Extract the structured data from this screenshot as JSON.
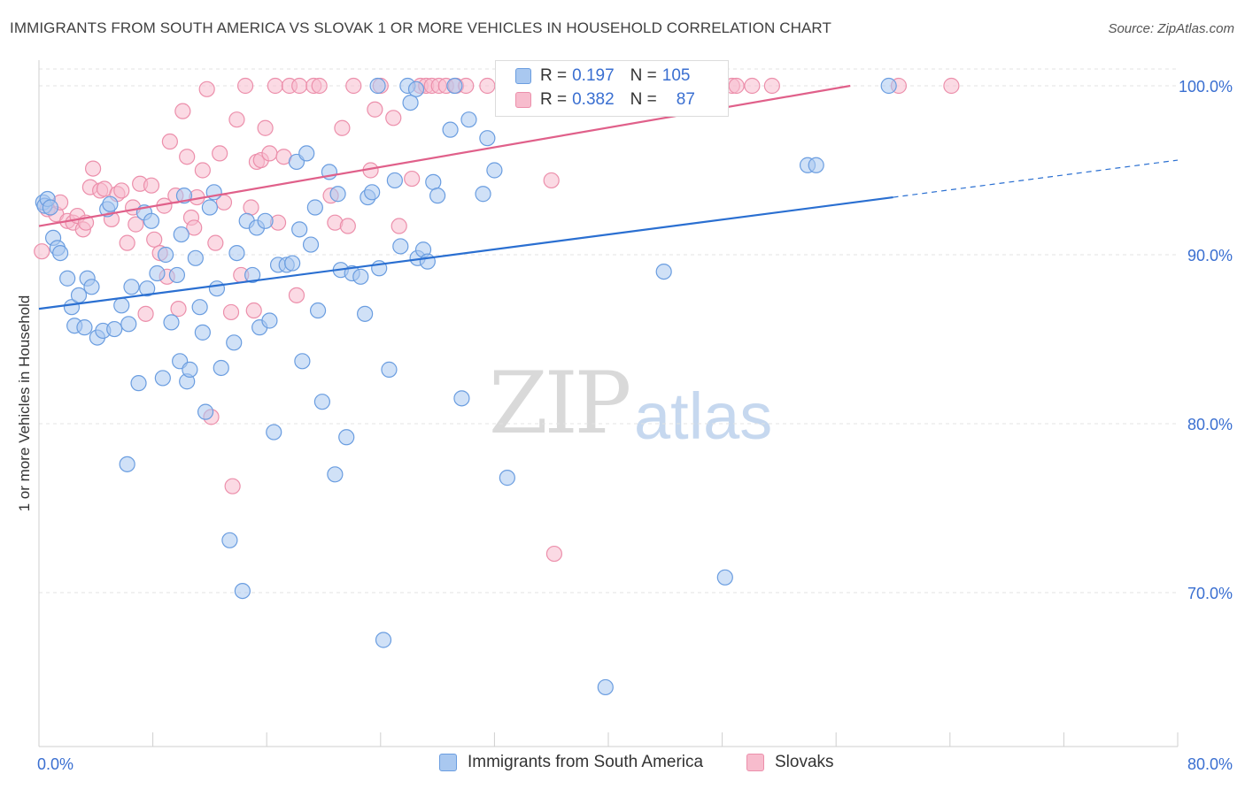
{
  "header": {
    "title": "IMMIGRANTS FROM SOUTH AMERICA VS SLOVAK 1 OR MORE VEHICLES IN HOUSEHOLD CORRELATION CHART",
    "source": "Source: ZipAtlas.com"
  },
  "watermark": {
    "zip": "ZIP",
    "atlas": "atlas"
  },
  "legend_top": {
    "rows": [
      {
        "r_label": "R =",
        "r_value": "0.197",
        "n_label": "N =",
        "n_value": "105"
      },
      {
        "r_label": "R =",
        "r_value": "0.382",
        "n_label": "N =",
        "n_value": "87"
      }
    ]
  },
  "legend_bottom": {
    "items": [
      "Immigrants from South America",
      "Slovaks"
    ]
  },
  "colors": {
    "blue_fill": "#a9c8f0",
    "blue_stroke": "#6a9de0",
    "blue_line": "#2a6fd1",
    "pink_fill": "#f7bccd",
    "pink_stroke": "#ec8fab",
    "pink_line": "#e0608a",
    "tick_label": "#3a6fd1",
    "grid": "#e3e3e3"
  },
  "chart_data": {
    "type": "scatter",
    "title": "IMMIGRANTS FROM SOUTH AMERICA VS SLOVAK 1 OR MORE VEHICLES IN HOUSEHOLD CORRELATION CHART",
    "xlabel": "",
    "ylabel": "1 or more Vehicles in Household",
    "xlim": [
      0,
      80
    ],
    "ylim": [
      60.5,
      101.5
    ],
    "x_tick_labels": [
      "0.0%",
      "80.0%"
    ],
    "y_ticks": [
      70,
      80,
      90,
      100
    ],
    "y_tick_labels": [
      "70.0%",
      "80.0%",
      "90.0%",
      "100.0%"
    ],
    "grid": true,
    "legend_position": "top-center",
    "series": [
      {
        "name": "Immigrants from South America",
        "r": 0.197,
        "n": 105,
        "trend": {
          "x0": 0,
          "y0": 86.8,
          "x1": 60,
          "y1": 93.4,
          "dashed_to_x": 80,
          "dashed_to_y": 95.6
        },
        "points": [
          [
            0.3,
            93.1
          ],
          [
            0.4,
            92.9
          ],
          [
            0.6,
            93.3
          ],
          [
            0.8,
            92.8
          ],
          [
            1.0,
            91.0
          ],
          [
            1.3,
            90.4
          ],
          [
            1.5,
            90.1
          ],
          [
            2.0,
            88.6
          ],
          [
            2.3,
            86.9
          ],
          [
            2.5,
            85.8
          ],
          [
            2.8,
            87.6
          ],
          [
            3.2,
            85.7
          ],
          [
            3.4,
            88.6
          ],
          [
            3.7,
            88.1
          ],
          [
            4.1,
            85.1
          ],
          [
            4.5,
            85.5
          ],
          [
            4.8,
            92.7
          ],
          [
            5.3,
            85.6
          ],
          [
            5.8,
            87.0
          ],
          [
            6.3,
            85.9
          ],
          [
            6.5,
            88.1
          ],
          [
            7.0,
            82.4
          ],
          [
            7.4,
            92.5
          ],
          [
            7.6,
            88.0
          ],
          [
            7.9,
            92.0
          ],
          [
            8.3,
            88.9
          ],
          [
            8.7,
            82.7
          ],
          [
            8.9,
            90.0
          ],
          [
            9.3,
            86.0
          ],
          [
            9.7,
            88.8
          ],
          [
            9.9,
            83.7
          ],
          [
            10.2,
            93.5
          ],
          [
            10.4,
            82.5
          ],
          [
            10.6,
            83.2
          ],
          [
            11.0,
            89.8
          ],
          [
            11.5,
            85.4
          ],
          [
            11.7,
            80.7
          ],
          [
            12.0,
            92.8
          ],
          [
            12.3,
            93.7
          ],
          [
            12.5,
            88.0
          ],
          [
            12.8,
            83.3
          ],
          [
            13.4,
            73.1
          ],
          [
            13.7,
            84.8
          ],
          [
            13.9,
            90.1
          ],
          [
            14.3,
            70.1
          ],
          [
            14.6,
            92.0
          ],
          [
            15.0,
            88.8
          ],
          [
            15.3,
            91.6
          ],
          [
            15.5,
            85.7
          ],
          [
            15.9,
            92.0
          ],
          [
            16.2,
            86.1
          ],
          [
            16.5,
            79.5
          ],
          [
            16.8,
            89.4
          ],
          [
            17.4,
            89.4
          ],
          [
            17.8,
            89.5
          ],
          [
            18.1,
            95.5
          ],
          [
            18.5,
            83.7
          ],
          [
            18.8,
            96.0
          ],
          [
            19.1,
            90.6
          ],
          [
            19.4,
            92.8
          ],
          [
            19.6,
            86.7
          ],
          [
            19.9,
            81.3
          ],
          [
            20.4,
            94.9
          ],
          [
            20.8,
            77.0
          ],
          [
            21.0,
            93.6
          ],
          [
            21.2,
            89.1
          ],
          [
            21.6,
            79.2
          ],
          [
            22.0,
            88.9
          ],
          [
            22.6,
            88.7
          ],
          [
            22.9,
            86.5
          ],
          [
            23.1,
            93.4
          ],
          [
            23.4,
            93.7
          ],
          [
            23.9,
            89.2
          ],
          [
            24.2,
            67.2
          ],
          [
            24.6,
            83.2
          ],
          [
            25.0,
            94.4
          ],
          [
            25.4,
            90.5
          ],
          [
            25.9,
            100.0
          ],
          [
            26.1,
            99.0
          ],
          [
            26.6,
            89.8
          ],
          [
            27.0,
            90.3
          ],
          [
            27.3,
            89.6
          ],
          [
            27.7,
            94.3
          ],
          [
            28.0,
            93.5
          ],
          [
            28.9,
            97.4
          ],
          [
            29.2,
            100.0
          ],
          [
            29.7,
            81.5
          ],
          [
            30.2,
            98.0
          ],
          [
            31.2,
            93.6
          ],
          [
            31.5,
            96.9
          ],
          [
            32.0,
            95.0
          ],
          [
            32.9,
            76.8
          ],
          [
            39.8,
            64.4
          ],
          [
            43.9,
            89.0
          ],
          [
            48.2,
            70.9
          ],
          [
            54.0,
            95.3
          ],
          [
            54.6,
            95.3
          ],
          [
            59.7,
            100.0
          ],
          [
            11.3,
            86.9
          ],
          [
            6.2,
            77.6
          ],
          [
            5.0,
            93.0
          ],
          [
            10.0,
            91.2
          ],
          [
            23.8,
            100.0
          ],
          [
            26.5,
            99.8
          ],
          [
            18.3,
            91.5
          ]
        ]
      },
      {
        "name": "Slovaks",
        "r": 0.382,
        "n": 87,
        "trend": {
          "x0": 0,
          "y0": 91.7,
          "x1": 57,
          "y1": 100.0
        },
        "points": [
          [
            0.2,
            90.2
          ],
          [
            0.6,
            92.7
          ],
          [
            1.2,
            92.4
          ],
          [
            1.5,
            93.1
          ],
          [
            2.0,
            92.0
          ],
          [
            2.4,
            91.9
          ],
          [
            2.7,
            92.3
          ],
          [
            3.1,
            91.5
          ],
          [
            3.3,
            91.9
          ],
          [
            3.6,
            94.0
          ],
          [
            3.8,
            95.1
          ],
          [
            4.3,
            93.8
          ],
          [
            4.6,
            93.9
          ],
          [
            5.1,
            92.1
          ],
          [
            5.5,
            93.6
          ],
          [
            5.8,
            93.8
          ],
          [
            6.2,
            90.7
          ],
          [
            6.6,
            92.8
          ],
          [
            6.8,
            91.8
          ],
          [
            7.1,
            94.2
          ],
          [
            7.5,
            86.5
          ],
          [
            7.9,
            94.1
          ],
          [
            8.1,
            90.9
          ],
          [
            8.5,
            90.1
          ],
          [
            8.8,
            92.9
          ],
          [
            9.0,
            88.7
          ],
          [
            9.2,
            96.7
          ],
          [
            9.6,
            93.5
          ],
          [
            9.8,
            86.8
          ],
          [
            10.1,
            98.5
          ],
          [
            10.4,
            95.8
          ],
          [
            10.7,
            92.2
          ],
          [
            10.9,
            91.6
          ],
          [
            11.1,
            93.4
          ],
          [
            11.5,
            95.0
          ],
          [
            11.8,
            99.8
          ],
          [
            12.1,
            80.4
          ],
          [
            12.4,
            90.7
          ],
          [
            12.7,
            96.0
          ],
          [
            13.0,
            93.1
          ],
          [
            13.5,
            86.6
          ],
          [
            13.6,
            76.3
          ],
          [
            13.9,
            98.0
          ],
          [
            14.2,
            88.8
          ],
          [
            14.5,
            100.0
          ],
          [
            14.9,
            92.8
          ],
          [
            15.1,
            86.7
          ],
          [
            15.3,
            95.5
          ],
          [
            15.6,
            95.6
          ],
          [
            15.9,
            97.5
          ],
          [
            16.2,
            96.0
          ],
          [
            16.6,
            100.0
          ],
          [
            16.8,
            91.9
          ],
          [
            17.2,
            95.8
          ],
          [
            17.6,
            100.0
          ],
          [
            18.1,
            87.6
          ],
          [
            18.3,
            100.0
          ],
          [
            19.3,
            100.0
          ],
          [
            19.7,
            100.0
          ],
          [
            20.5,
            93.5
          ],
          [
            20.8,
            91.9
          ],
          [
            21.3,
            97.5
          ],
          [
            21.7,
            91.7
          ],
          [
            22.1,
            100.0
          ],
          [
            23.3,
            95.0
          ],
          [
            23.6,
            98.6
          ],
          [
            24.0,
            100.0
          ],
          [
            24.9,
            98.1
          ],
          [
            25.3,
            91.7
          ],
          [
            26.2,
            94.5
          ],
          [
            26.8,
            100.0
          ],
          [
            27.2,
            100.0
          ],
          [
            27.6,
            100.0
          ],
          [
            28.1,
            100.0
          ],
          [
            28.6,
            100.0
          ],
          [
            29.3,
            100.0
          ],
          [
            30.0,
            100.0
          ],
          [
            31.5,
            100.0
          ],
          [
            33.0,
            100.0
          ],
          [
            36.0,
            94.4
          ],
          [
            36.2,
            72.3
          ],
          [
            48.7,
            100.0
          ],
          [
            49.0,
            100.0
          ],
          [
            50.1,
            100.0
          ],
          [
            51.5,
            100.0
          ],
          [
            60.4,
            100.0
          ],
          [
            64.1,
            100.0
          ]
        ]
      }
    ]
  }
}
